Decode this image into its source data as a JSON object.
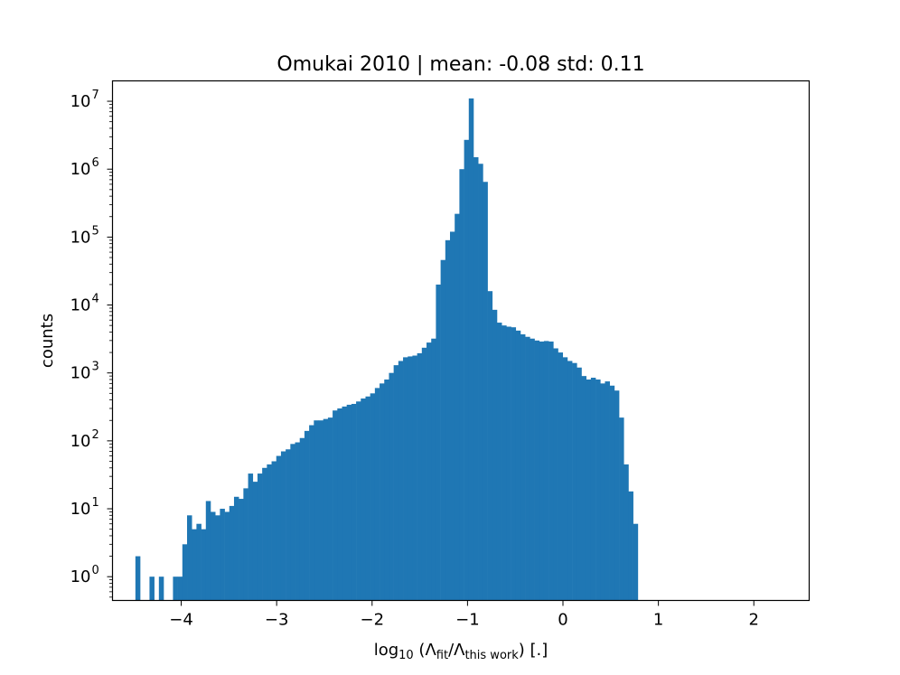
{
  "chart_data": {
    "type": "bar",
    "title": "Omukai 2010 | mean: -0.08 std: 0.11",
    "xlabel": {
      "prefix": "log",
      "prefix_sub": "10",
      "open": " (Λ",
      "sub1": "fit",
      "slash": "/Λ",
      "sub2": "this work",
      "close": ") [.]"
    },
    "ylabel": "counts",
    "yscale": "log",
    "xlim": [
      -4.72,
      2.58
    ],
    "ylim_log10": [
      -0.35,
      7.3
    ],
    "x_ticks": [
      {
        "value": -4,
        "label": "−4"
      },
      {
        "value": -3,
        "label": "−3"
      },
      {
        "value": -2,
        "label": "−2"
      },
      {
        "value": -1,
        "label": "−1"
      },
      {
        "value": 0,
        "label": "0"
      },
      {
        "value": 1,
        "label": "1"
      },
      {
        "value": 2,
        "label": "2"
      }
    ],
    "y_ticks": [
      {
        "exp": 0,
        "base": "10",
        "sup": "0"
      },
      {
        "exp": 1,
        "base": "10",
        "sup": "1"
      },
      {
        "exp": 2,
        "base": "10",
        "sup": "2"
      },
      {
        "exp": 3,
        "base": "10",
        "sup": "3"
      },
      {
        "exp": 4,
        "base": "10",
        "sup": "4"
      },
      {
        "exp": 5,
        "base": "10",
        "sup": "5"
      },
      {
        "exp": 6,
        "base": "10",
        "sup": "6"
      },
      {
        "exp": 7,
        "base": "10",
        "sup": "7"
      }
    ],
    "bar_color": "#1f77b4",
    "bin_start": -4.48,
    "bin_width": 0.0492,
    "counts": [
      2,
      0,
      0,
      1,
      0,
      1,
      0,
      0,
      1,
      1,
      3,
      8,
      5,
      6,
      5,
      13,
      9,
      8,
      10,
      9,
      11,
      15,
      14,
      20,
      33,
      25,
      33,
      40,
      45,
      50,
      60,
      70,
      75,
      90,
      95,
      110,
      140,
      170,
      200,
      200,
      210,
      220,
      280,
      300,
      320,
      340,
      350,
      380,
      420,
      450,
      500,
      600,
      700,
      800,
      1000,
      1300,
      1500,
      1700,
      1750,
      1800,
      1950,
      2350,
      2800,
      3200,
      20000,
      46000,
      90000,
      120000,
      220000,
      1000000,
      2700000,
      11000000,
      1500000,
      1200000,
      650000,
      16000,
      8500,
      5500,
      5000,
      4800,
      4700,
      4200,
      3700,
      3400,
      3200,
      3000,
      2900,
      2950,
      2900,
      2300,
      2000,
      1700,
      1500,
      1400,
      1200,
      900,
      800,
      850,
      800,
      700,
      750,
      650,
      550,
      220,
      45,
      18,
      6
    ]
  }
}
